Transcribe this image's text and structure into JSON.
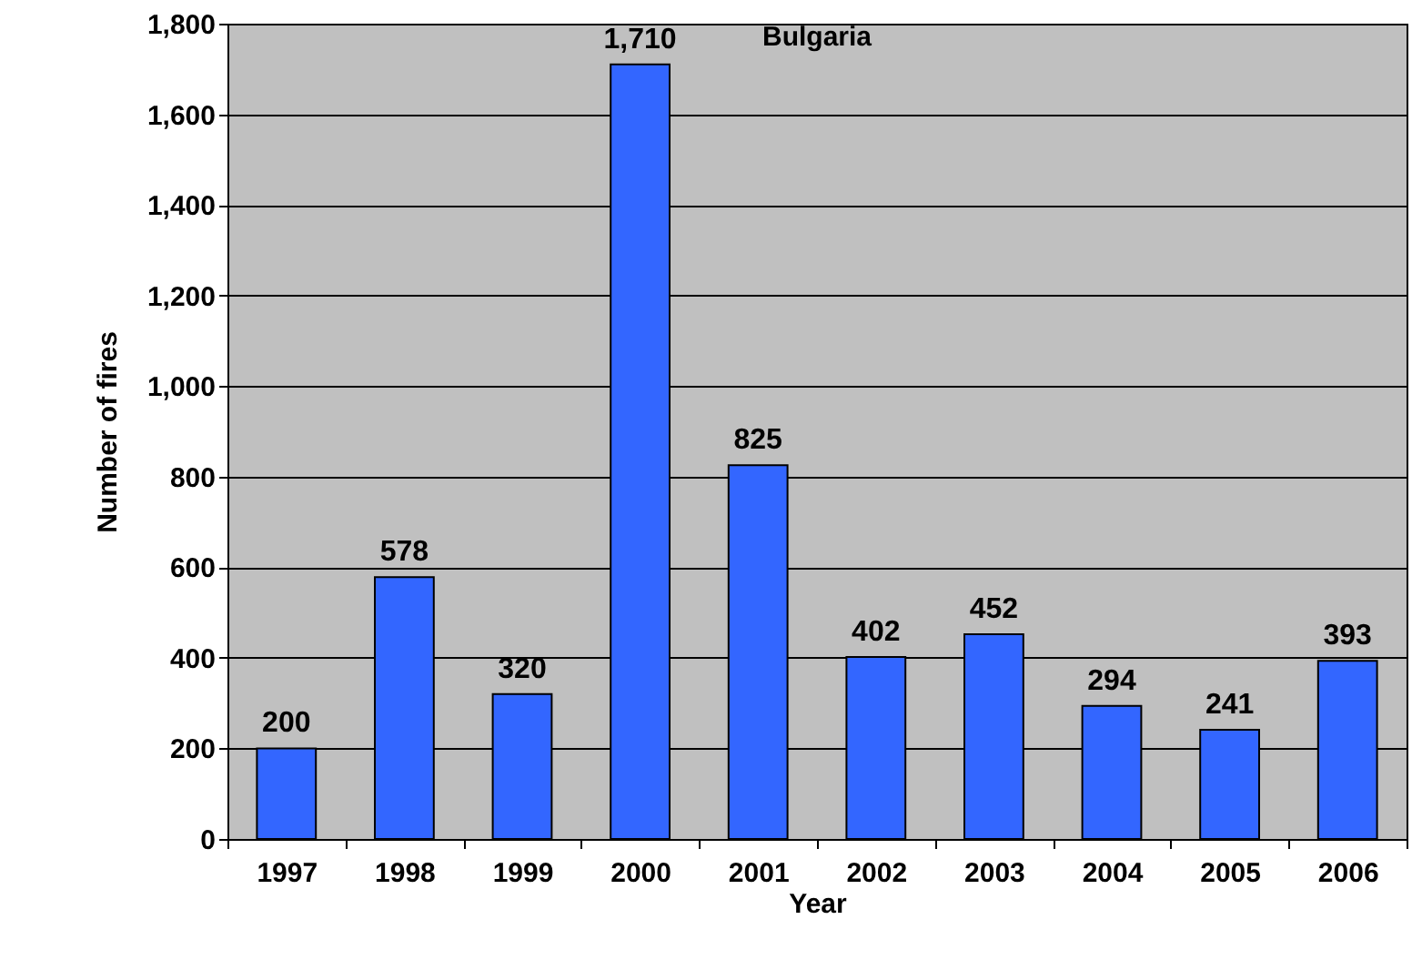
{
  "chart_data": {
    "type": "bar",
    "title": "Bulgaria",
    "xlabel": "Year",
    "ylabel": "Number of fires",
    "categories": [
      "1997",
      "1998",
      "1999",
      "2000",
      "2001",
      "2002",
      "2003",
      "2004",
      "2005",
      "2006"
    ],
    "values": [
      200,
      578,
      320,
      1710,
      825,
      402,
      452,
      294,
      241,
      393
    ],
    "value_labels": [
      "200",
      "578",
      "320",
      "1,710",
      "825",
      "402",
      "452",
      "294",
      "241",
      "393"
    ],
    "color": "#3366ff",
    "ylim": [
      0,
      1800
    ],
    "yticks": [
      0,
      200,
      400,
      600,
      800,
      {
        "value": 1000,
        "label": "1,000"
      },
      {
        "value": 1200,
        "label": "1,200"
      },
      {
        "value": 1400,
        "label": "1,400"
      },
      {
        "value": 1600,
        "label": "1,600"
      },
      {
        "value": 1800,
        "label": "1,800"
      }
    ],
    "grid": "y"
  }
}
